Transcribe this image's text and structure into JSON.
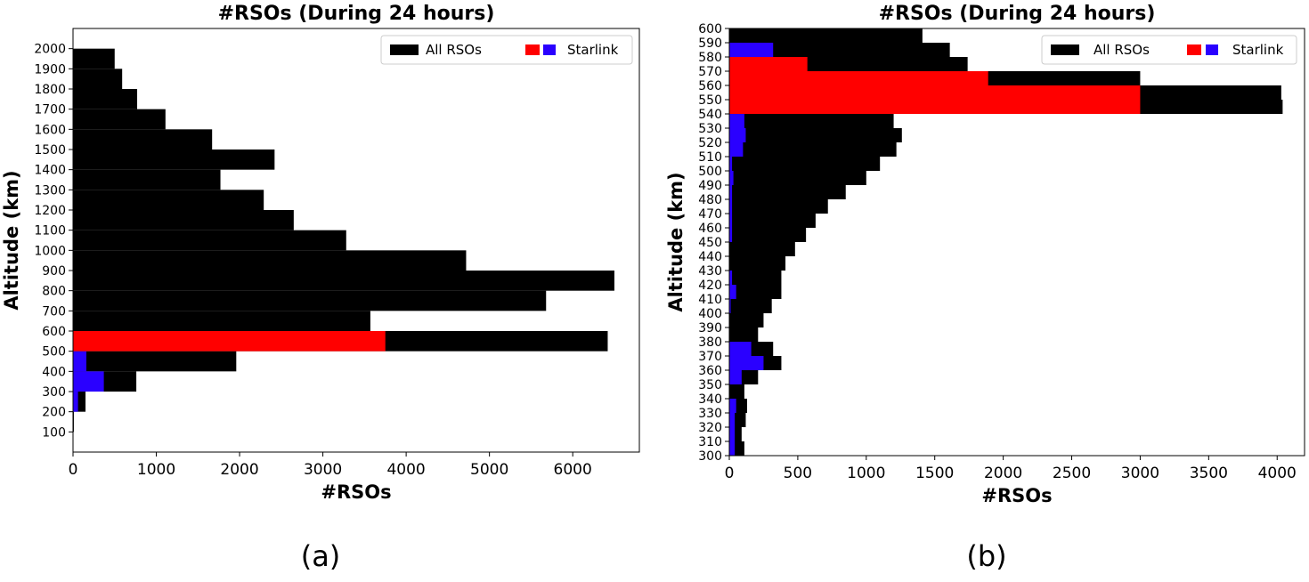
{
  "chart_data": [
    {
      "type": "bar",
      "orientation": "horizontal",
      "title": "#RSOs (During 24 hours)",
      "xlabel": "#RSOs",
      "ylabel": "Altitude (km)",
      "caption": "(a)",
      "xlim": [
        0,
        6800
      ],
      "ylim": [
        0,
        2100
      ],
      "bin_width": 100,
      "xticks": [
        0,
        1000,
        2000,
        3000,
        4000,
        5000,
        6000
      ],
      "yticks": [
        100,
        200,
        300,
        400,
        500,
        600,
        700,
        800,
        900,
        1000,
        1100,
        1200,
        1300,
        1400,
        1500,
        1600,
        1700,
        1800,
        1900,
        2000
      ],
      "legend": {
        "position": "top-right",
        "labels": [
          "All RSOs",
          "Starlink"
        ]
      },
      "colors": {
        "all": "#000000",
        "starlink_main": "#ff0000",
        "starlink_other": "#2a00ff"
      },
      "bins_lower_edge": [
        100,
        200,
        300,
        400,
        500,
        600,
        700,
        800,
        900,
        1000,
        1100,
        1200,
        1300,
        1400,
        1500,
        1600,
        1700,
        1800,
        1900
      ],
      "series": [
        {
          "name": "All RSOs",
          "values": [
            10,
            150,
            760,
            1960,
            6420,
            3570,
            5680,
            6500,
            4720,
            3280,
            2650,
            2290,
            1770,
            2420,
            1670,
            1110,
            770,
            590,
            500
          ]
        },
        {
          "name": "Starlink",
          "values": [
            0,
            60,
            370,
            160,
            3750,
            0,
            0,
            0,
            0,
            0,
            0,
            0,
            0,
            0,
            0,
            0,
            0,
            0,
            0
          ],
          "colors_per_bin": [
            "blue",
            "blue",
            "blue",
            "blue",
            "red",
            "blue",
            "blue",
            "blue",
            "blue",
            "blue",
            "blue",
            "blue",
            "blue",
            "blue",
            "blue",
            "blue",
            "blue",
            "blue",
            "blue"
          ]
        }
      ]
    },
    {
      "type": "bar",
      "orientation": "horizontal",
      "title": "#RSOs (During 24 hours)",
      "xlabel": "#RSOs",
      "ylabel": "Altitude (km)",
      "caption": "(b)",
      "xlim": [
        0,
        4200
      ],
      "ylim": [
        300,
        600
      ],
      "bin_width": 10,
      "xticks": [
        0,
        500,
        1000,
        1500,
        2000,
        2500,
        3000,
        3500,
        4000
      ],
      "yticks": [
        300,
        310,
        320,
        330,
        340,
        350,
        360,
        370,
        380,
        390,
        400,
        410,
        420,
        430,
        440,
        450,
        460,
        470,
        480,
        490,
        500,
        510,
        520,
        530,
        540,
        550,
        560,
        570,
        580,
        590,
        600
      ],
      "legend": {
        "position": "top-right",
        "labels": [
          "All RSOs",
          "Starlink"
        ]
      },
      "colors": {
        "all": "#000000",
        "starlink_main": "#ff0000",
        "starlink_other": "#2a00ff"
      },
      "bins_lower_edge": [
        300,
        310,
        320,
        330,
        340,
        350,
        360,
        370,
        380,
        390,
        400,
        410,
        420,
        430,
        440,
        450,
        460,
        470,
        480,
        490,
        500,
        510,
        520,
        530,
        540,
        550,
        560,
        570,
        580,
        590
      ],
      "series": [
        {
          "name": "All RSOs",
          "values": [
            110,
            90,
            120,
            130,
            110,
            210,
            380,
            320,
            210,
            250,
            310,
            380,
            380,
            410,
            480,
            560,
            630,
            720,
            850,
            1000,
            1100,
            1220,
            1260,
            1200,
            4040,
            4030,
            3000,
            1740,
            1610,
            1410
          ]
        },
        {
          "name": "Starlink",
          "values": [
            40,
            40,
            40,
            50,
            0,
            90,
            250,
            160,
            0,
            0,
            10,
            50,
            20,
            0,
            0,
            20,
            20,
            20,
            20,
            30,
            20,
            100,
            120,
            110,
            3000,
            3000,
            1890,
            570,
            320,
            0
          ],
          "colors_per_bin": [
            "blue",
            "blue",
            "blue",
            "blue",
            "blue",
            "blue",
            "blue",
            "blue",
            "blue",
            "blue",
            "blue",
            "blue",
            "blue",
            "blue",
            "blue",
            "blue",
            "blue",
            "blue",
            "blue",
            "blue",
            "blue",
            "blue",
            "blue",
            "blue",
            "red",
            "red",
            "red",
            "red",
            "blue",
            "blue"
          ]
        }
      ]
    }
  ]
}
